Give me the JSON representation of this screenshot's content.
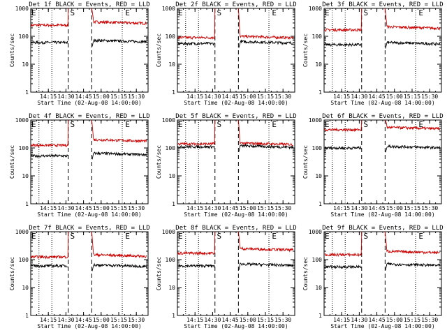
{
  "chart_data": {
    "type": "line",
    "x_time_ticks": [
      "14:15",
      "14:30",
      "14:45",
      "15:00",
      "15:15",
      "15:30"
    ],
    "x_range": [
      "14:00",
      "15:40"
    ],
    "y_scale": "log",
    "y_range": [
      1,
      1000
    ],
    "y_tick_labels": [
      "1",
      "10",
      "100",
      "1000"
    ],
    "dotted_vertical_lines": [
      "14:07",
      "14:18",
      "15:18"
    ],
    "dashed_vertical_lines": [
      "14:32",
      "14:52"
    ],
    "markers": [
      {
        "label": "E",
        "time": "14:00"
      },
      {
        "label": "S",
        "time": "14:33"
      },
      {
        "label": "E",
        "time": "15:20"
      }
    ],
    "colors": {
      "events": "#000000",
      "lld": "#cc0000"
    },
    "panels": [
      {
        "title": "Det 1f BLACK = Events, RED = LLD",
        "ylabel": "Counts/sec",
        "xlabel": "Start Time (02-Aug-08 14:00:00)",
        "lld_before": 250,
        "lld_after": 330,
        "events_before": 60,
        "events_after": 72
      },
      {
        "title": "Det 2f BLACK = Events, RED = LLD",
        "ylabel": "Counts/sec",
        "xlabel": "Start Time (02-Aug-08 14:00:00)",
        "lld_before": 90,
        "lld_after": 100,
        "events_before": 55,
        "events_after": 65
      },
      {
        "title": "Det 3f BLACK = Events, RED = LLD",
        "ylabel": "Counts/sec",
        "xlabel": "Start Time (02-Aug-08 14:00:00)",
        "lld_before": 170,
        "lld_after": 220,
        "events_before": 50,
        "events_after": 60
      },
      {
        "title": "Det 4f BLACK = Events, RED = LLD",
        "ylabel": "Counts/sec",
        "xlabel": "Start Time (02-Aug-08 14:00:00)",
        "lld_before": 125,
        "lld_after": 200,
        "events_before": 52,
        "events_after": 65
      },
      {
        "title": "Det 5f BLACK = Events, RED = LLD",
        "ylabel": "Counts/sec",
        "xlabel": "Start Time (02-Aug-08 14:00:00)",
        "lld_before": 140,
        "lld_after": 150,
        "events_before": 110,
        "events_after": 120
      },
      {
        "title": "Det 6f BLACK = Events, RED = LLD",
        "ylabel": "Counts/sec",
        "xlabel": "Start Time (02-Aug-08 14:00:00)",
        "lld_before": 450,
        "lld_after": 550,
        "events_before": 100,
        "events_after": 115
      },
      {
        "title": "Det 7f BLACK = Events, RED = LLD",
        "ylabel": "Counts/sec",
        "xlabel": "Start Time (02-Aug-08 14:00:00)",
        "lld_before": 125,
        "lld_after": 150,
        "events_before": 60,
        "events_after": 65
      },
      {
        "title": "Det 8f BLACK = Events, RED = LLD",
        "ylabel": "Counts/sec",
        "xlabel": "Start Time (02-Aug-08 14:00:00)",
        "lld_before": 170,
        "lld_after": 250,
        "events_before": 60,
        "events_after": 70
      },
      {
        "title": "Det 9f BLACK = Events, RED = LLD",
        "ylabel": "Counts/sec",
        "xlabel": "Start Time (02-Aug-08 14:00:00)",
        "lld_before": 150,
        "lld_after": 200,
        "events_before": 55,
        "events_after": 70
      }
    ]
  }
}
